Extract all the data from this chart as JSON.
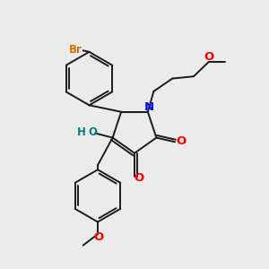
{
  "background_color": "#ebebeb",
  "bond_color": "#1a1a1a",
  "bond_width": 1.4,
  "N_color": "#0000ff",
  "O_color": "#ff0000",
  "OH_color": "#008080",
  "Br_color": "#cc7700",
  "xlim": [
    0,
    10
  ],
  "ylim": [
    0,
    10
  ]
}
